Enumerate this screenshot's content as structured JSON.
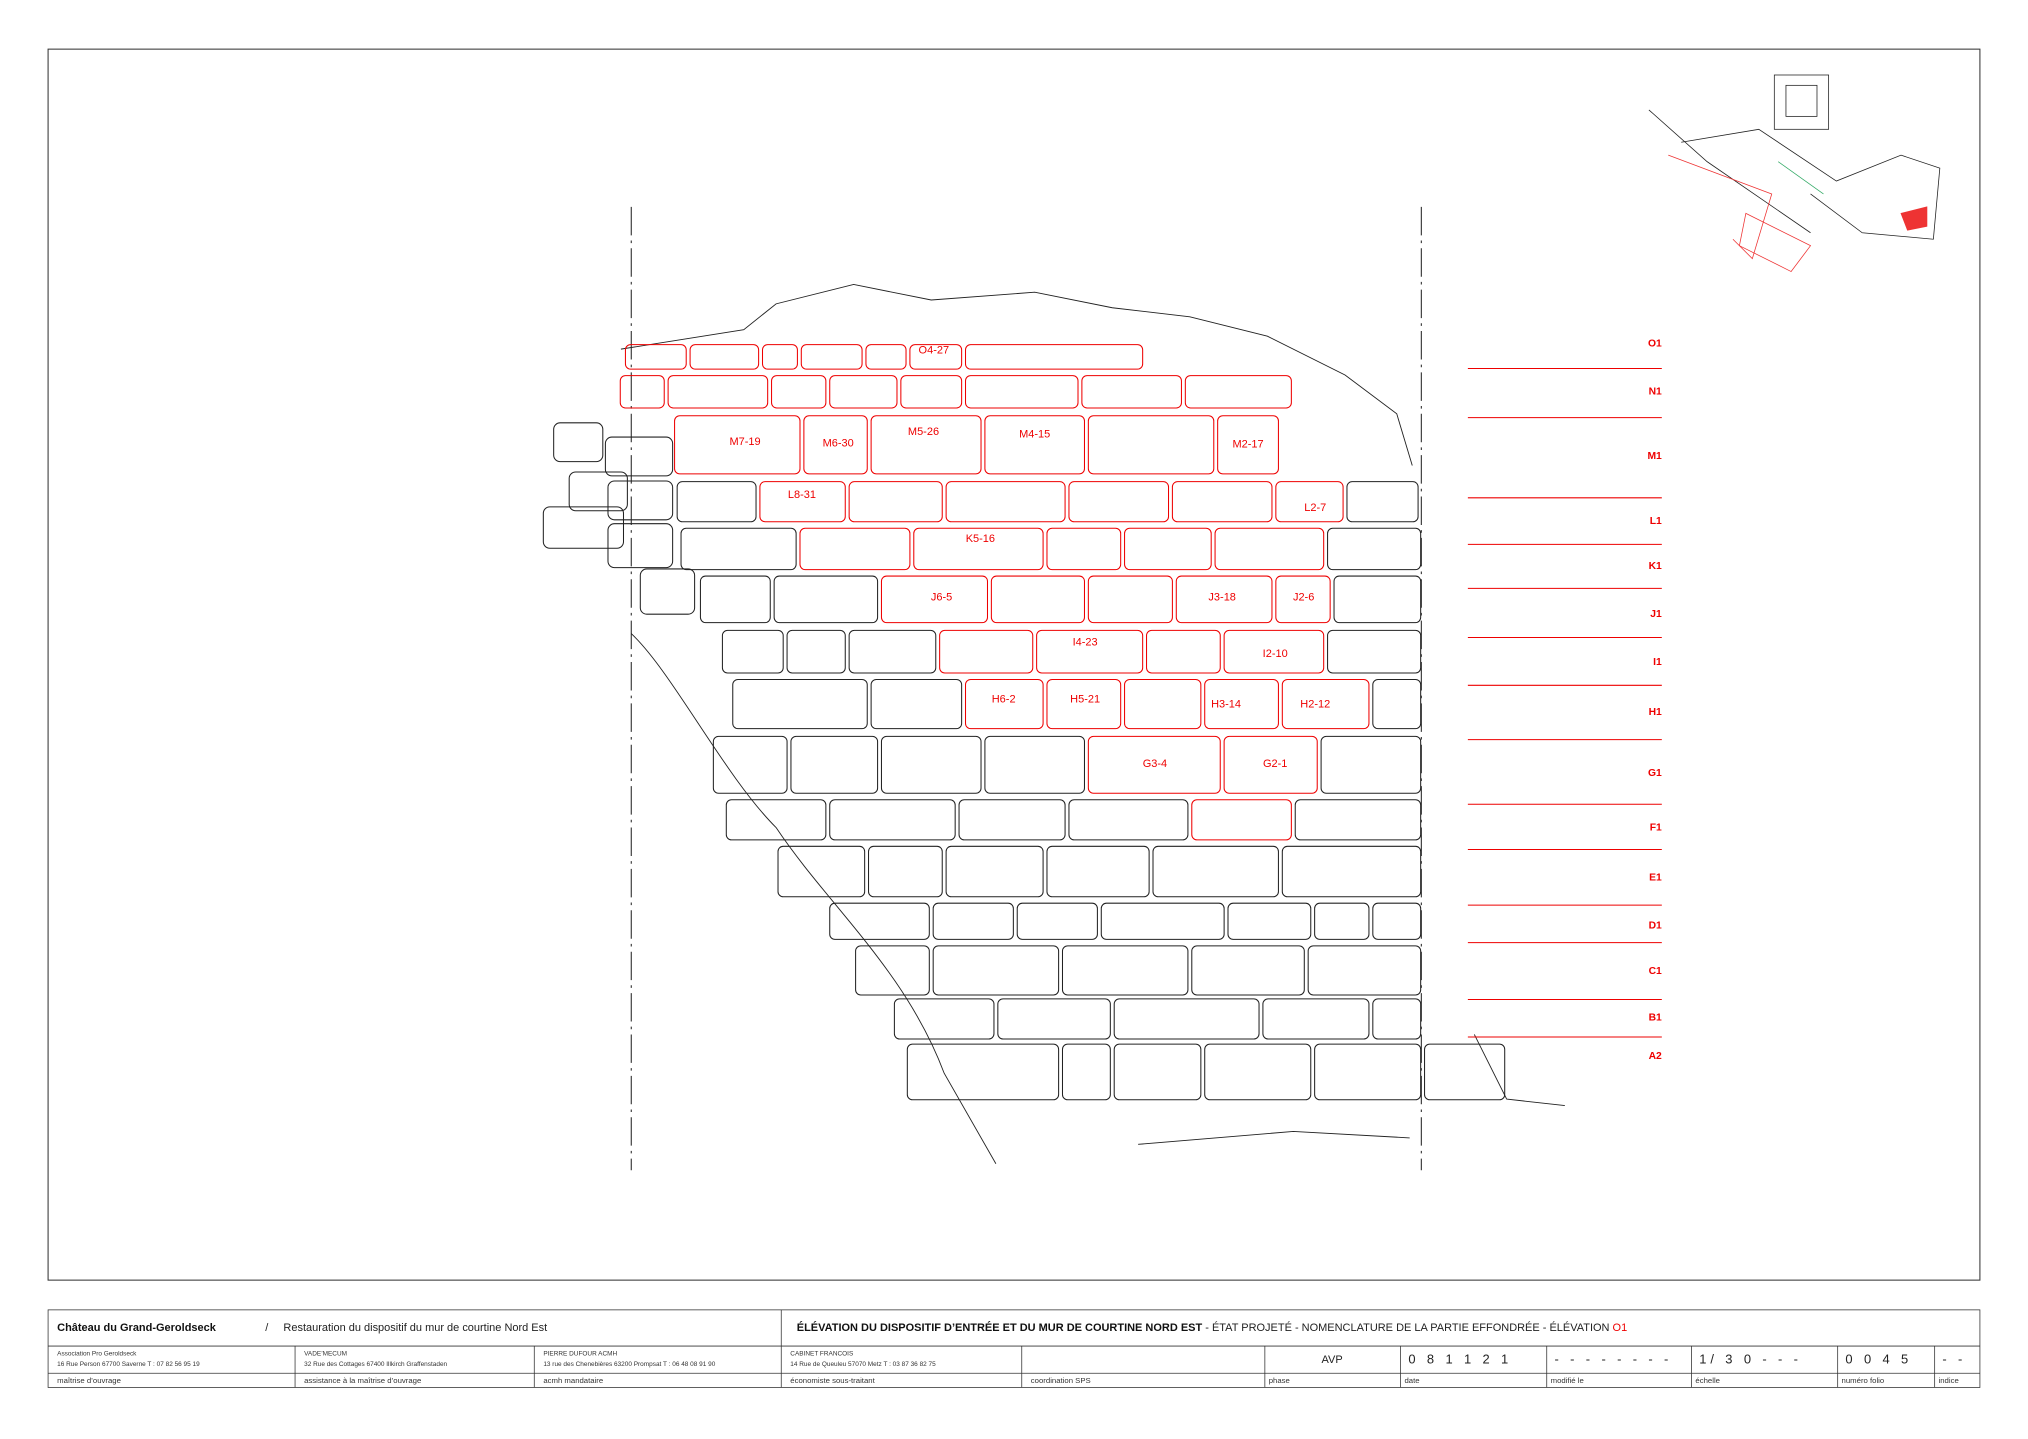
{
  "stones": [
    "O4-27",
    "M7-19",
    "M6-30",
    "M5-26",
    "M4-15",
    "M2-17",
    "L8-31",
    "L2-7",
    "K5-16",
    "J6-5",
    "J3-18",
    "J2-6",
    "I4-23",
    "I2-10",
    "H6-2",
    "H5-21",
    "H3-14",
    "H2-12",
    "G3-4",
    "G2-1"
  ],
  "courses": [
    "O1",
    "N1",
    "M1",
    "L1",
    "K1",
    "J1",
    "I1",
    "H1",
    "G1",
    "F1",
    "E1",
    "D1",
    "C1",
    "B1",
    "A2"
  ],
  "title_block": {
    "project": "Château du Grand-Geroldseck",
    "separator": "/",
    "subject": "Restauration du dispositif du mur de courtine Nord Est",
    "drawing_title": "ÉLÉVATION DU DISPOSITIF D’ENTRÉE ET DU MUR DE COURTINE NORD EST",
    "drawing_subtitle": " - ÉTAT PROJETÉ - NOMENCLATURE DE LA PARTIE EFFONDRÉE - ÉLÉVATION ",
    "elevation": "O1",
    "parties": [
      {
        "name": "Association Pro Geroldseck",
        "address": "16 Rue Person    67700 Saverne    T : 07 82 56 95 19",
        "role": "maîtrise d’ouvrage"
      },
      {
        "name": "VADE’MECUM",
        "address": "32 Rue des Cottages  67400 Illkirch Graffenstaden",
        "role": "assistance à la maîtrise d’ouvrage"
      },
      {
        "name": "PIERRE DUFOUR ACMH",
        "address": "13 rue des Chenebières  63200 Prompsat   T : 06 48 08 91 90",
        "role": "acmh mandataire"
      },
      {
        "name": "CABINET FRANCOIS",
        "address": "14 Rue de Queuleu       57070 Metz   T : 03 87 36 82 75",
        "role": "économiste sous-traitant"
      }
    ],
    "coordination": "coordination SPS",
    "fields": [
      {
        "value": "AVP",
        "label": "phase"
      },
      {
        "value": "0 8 1 1 2 1",
        "label": "date"
      },
      {
        "value": "- - - - - - - -",
        "label": "modifié le"
      },
      {
        "value": "1/ 3 0 - - -",
        "label": "échelle"
      },
      {
        "value": "0 0 4 5",
        "label": "numéro folio"
      },
      {
        "value": "- -",
        "label": "indice"
      }
    ]
  }
}
